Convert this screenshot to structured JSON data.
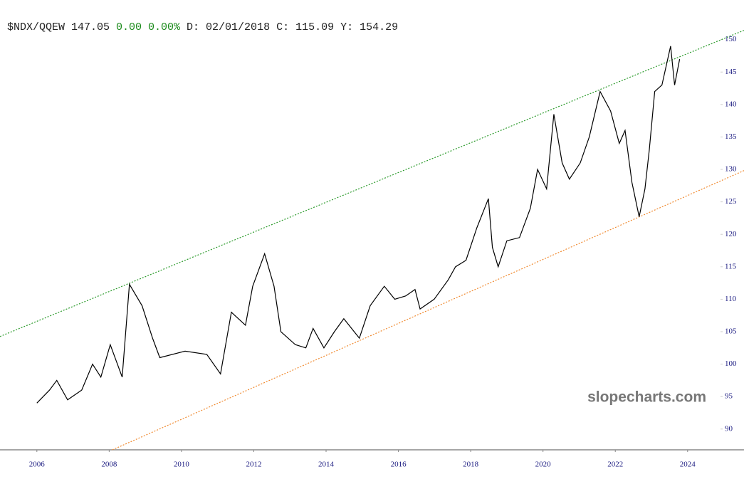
{
  "chart_data": {
    "type": "line",
    "header": [
      {
        "text": "$NDX/QQEW 147.05",
        "color": "#222222"
      },
      {
        "text": "0.00 0.00%",
        "color": "#1a8a1a"
      },
      {
        "text": "D: 02/01/2018 C: 115.09 Y: 154.29",
        "color": "#222222"
      }
    ],
    "watermark": "slopecharts.com",
    "xlim": [
      2004.98,
      2025.56
    ],
    "ylim": [
      86.8,
      156.1
    ],
    "xticks": [
      2006,
      2008,
      2010,
      2012,
      2014,
      2016,
      2018,
      2020,
      2022,
      2024
    ],
    "yticks": [
      90,
      95,
      100,
      105,
      110,
      115,
      120,
      125,
      130,
      135,
      140,
      145,
      150
    ],
    "series": [
      {
        "color": "#000000",
        "x": [
          2006.0,
          2006.35,
          2006.55,
          2006.85,
          2007.24,
          2007.54,
          2007.77,
          2008.03,
          2008.36,
          2008.56,
          2008.91,
          2009.2,
          2009.4,
          2010.1,
          2010.7,
          2011.08,
          2011.38,
          2011.77,
          2011.97,
          2012.3,
          2012.56,
          2012.75,
          2013.15,
          2013.44,
          2013.64,
          2013.94,
          2014.23,
          2014.49,
          2014.92,
          2015.22,
          2015.61,
          2015.9,
          2016.2,
          2016.46,
          2016.6,
          2016.99,
          2017.38,
          2017.58,
          2017.87,
          2018.17,
          2018.49,
          2018.6,
          2018.76,
          2019.0,
          2019.35,
          2019.65,
          2019.85,
          2020.1,
          2020.3,
          2020.53,
          2020.73,
          2021.03,
          2021.28,
          2021.58,
          2021.87,
          2022.11,
          2022.27,
          2022.46,
          2022.66,
          2022.82,
          2022.94,
          2023.09,
          2023.29,
          2023.53,
          2023.64,
          2023.78
        ],
        "values": [
          94,
          96,
          97.5,
          94.5,
          96,
          100,
          98,
          103,
          98,
          112.3,
          109,
          104,
          101,
          102,
          101.5,
          98.5,
          108,
          106,
          112,
          117,
          112,
          105,
          103,
          102.5,
          105.5,
          102.5,
          105,
          107,
          104,
          109,
          112,
          110,
          110.5,
          111.5,
          108.5,
          110,
          113,
          115,
          116,
          121,
          125.5,
          118,
          115,
          119,
          119.5,
          124,
          130,
          127,
          138.5,
          131,
          128.5,
          131,
          135,
          142,
          139,
          134,
          136,
          128,
          122.7,
          127,
          133,
          142,
          143,
          149,
          143,
          147
        ]
      }
    ],
    "trendlines": [
      {
        "color": "#2a9a2a",
        "x": [
          2004.98,
          2025.56
        ],
        "values": [
          104.26,
          151.43
        ]
      },
      {
        "color": "#f08a30",
        "x": [
          2008.09,
          2025.56
        ],
        "values": [
          86.8,
          129.82
        ]
      }
    ]
  }
}
